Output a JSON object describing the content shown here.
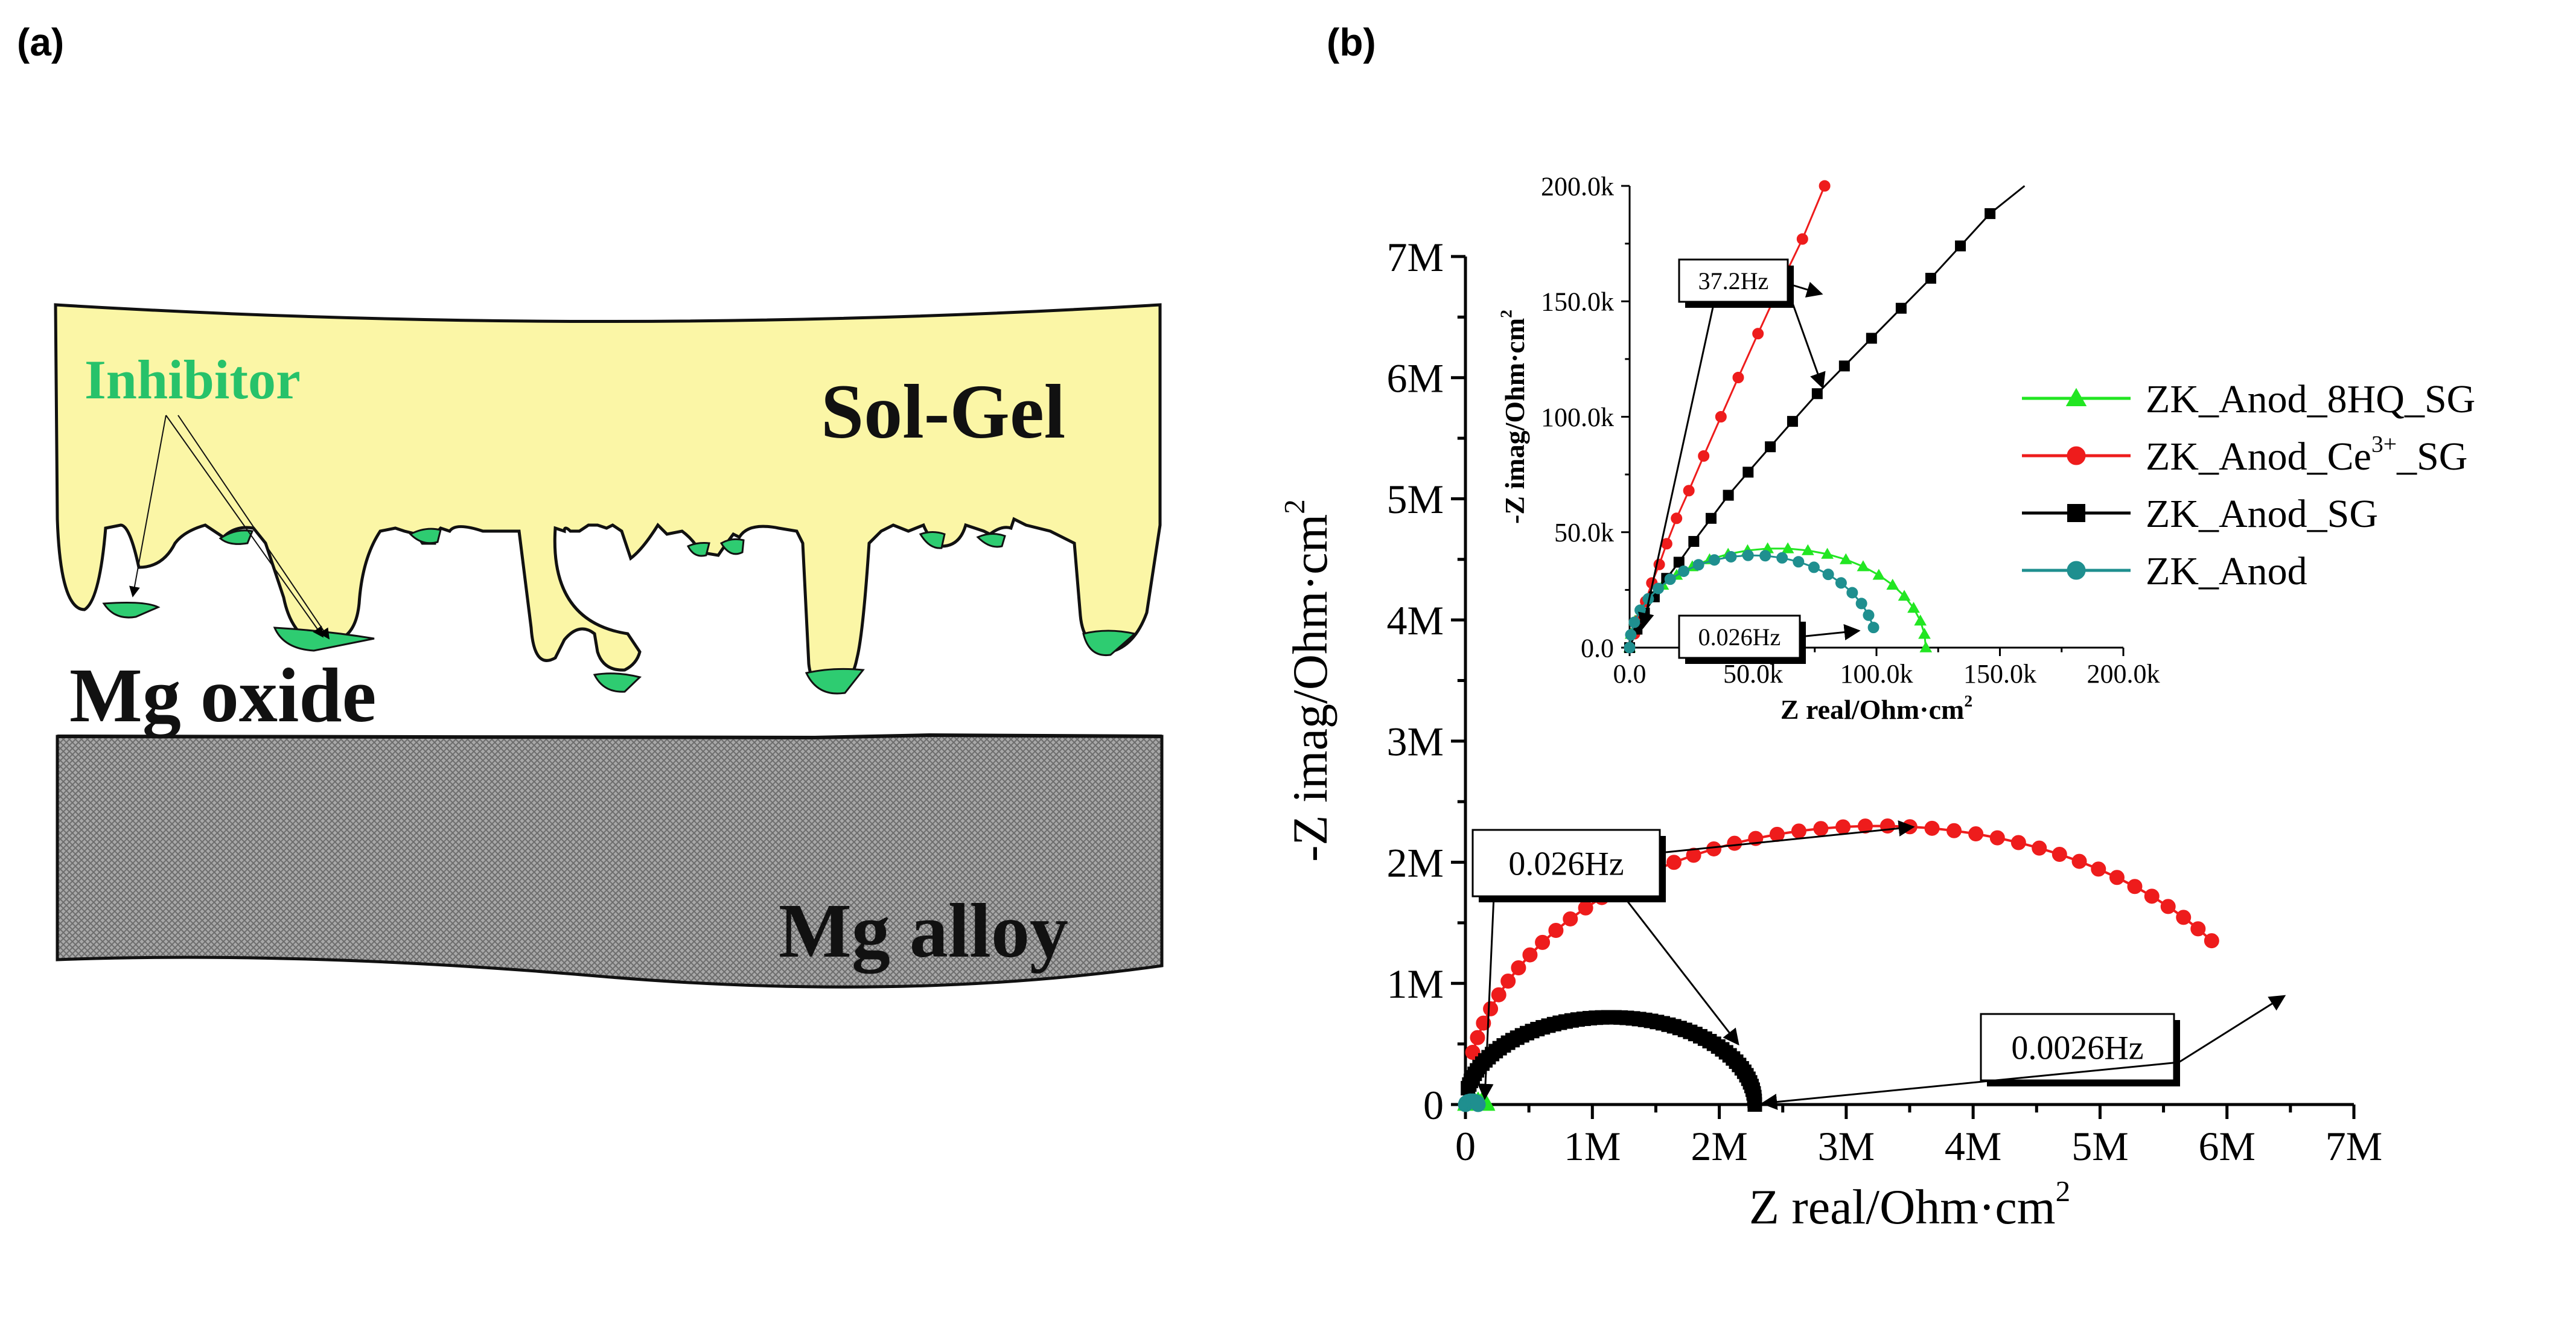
{
  "panel_a": {
    "label": "(a)",
    "layers": {
      "solgel": "Sol-Gel",
      "inhibitor": "Inhibitor",
      "oxide": "Mg oxide",
      "alloy": "Mg alloy"
    },
    "colors": {
      "solgel": "#fbf6a6",
      "inhibitor": "#27c26a",
      "inhibitor_fill": "#2ecc71",
      "oxide": "#ffffff",
      "alloy": "#9e9e9e"
    }
  },
  "panel_b": {
    "label": "(b)",
    "colors": {
      "green": "#22e622",
      "red": "#ee1c1c",
      "black": "#000000",
      "teal": "#1f8f8f"
    }
  },
  "chart_data": [
    {
      "type": "scatter",
      "name": "main",
      "xlabel_main": "Z real/Ohm",
      "xlabel_unit": "cm",
      "xlabel_exp": "2",
      "ylabel_main": "-Z imag/Ohm",
      "ylabel_unit": "cm",
      "ylabel_exp": "2",
      "xlim": [
        0,
        7000000
      ],
      "ylim": [
        0,
        7000000
      ],
      "xticks": [
        0,
        1000000,
        2000000,
        3000000,
        4000000,
        5000000,
        6000000,
        7000000
      ],
      "xtick_labels": [
        "0",
        "1M",
        "2M",
        "3M",
        "4M",
        "5M",
        "6M",
        "7M"
      ],
      "yticks": [
        0,
        1000000,
        2000000,
        3000000,
        4000000,
        5000000,
        6000000,
        7000000
      ],
      "ytick_labels": [
        "0",
        "1M",
        "2M",
        "3M",
        "4M",
        "5M",
        "6M",
        "7M"
      ],
      "series": [
        {
          "name": "ZK_Anod_8HQ_SG",
          "color_key": "green",
          "marker": "triangle",
          "arc": {
            "x0": 0,
            "x1": 170000,
            "hmax": 40000,
            "n": 10
          }
        },
        {
          "name": "ZK_Anod_Ce3+_SG",
          "color_key": "red",
          "marker": "circle",
          "arc": {
            "x0": 0,
            "x1": 6500000,
            "hmax": 2300000,
            "n": 44,
            "start": 0.06,
            "end": 0.8
          }
        },
        {
          "name": "ZK_Anod_SG",
          "color_key": "black",
          "marker": "square",
          "arc": {
            "x0": 0,
            "x1": 2280000,
            "hmax": 720000,
            "n": 70,
            "start": 0.06,
            "end": 1.0
          }
        },
        {
          "name": "ZK_Anod",
          "color_key": "teal",
          "marker": "circle",
          "arc": {
            "x0": 0,
            "x1": 100000,
            "hmax": 30000,
            "n": 8
          }
        }
      ],
      "annotations": [
        {
          "text": "0.026Hz"
        },
        {
          "text": "0.0026Hz"
        }
      ]
    },
    {
      "type": "scatter",
      "name": "inset",
      "xlabel_main": "Z real/Ohm",
      "xlabel_unit": "cm",
      "xlabel_exp": "2",
      "ylabel_main": "-Z imag/Ohm",
      "ylabel_unit": "cm",
      "ylabel_exp": "2",
      "xlim": [
        0,
        200000
      ],
      "ylim": [
        0,
        200000
      ],
      "xticks": [
        0,
        50000,
        100000,
        150000,
        200000
      ],
      "xtick_labels": [
        "0.0",
        "50.0k",
        "100.0k",
        "150.0k",
        "200.0k"
      ],
      "yticks": [
        0,
        50000,
        100000,
        150000,
        200000
      ],
      "ytick_labels": [
        "0.0",
        "50.0k",
        "100.0k",
        "150.0k",
        "200.0k"
      ],
      "series": [
        {
          "name": "ZK_Anod_8HQ_SG",
          "color_key": "green",
          "marker": "triangle",
          "arc": {
            "x0": 0,
            "x1": 120000,
            "hmax": 43000,
            "n": 24,
            "start": 0.0,
            "end": 1.0
          }
        },
        {
          "name": "ZK_Anod_Ce3+_SG",
          "color_key": "red",
          "marker": "circle",
          "points": [
            [
              0,
              0
            ],
            [
              2000,
              6000
            ],
            [
              4000,
              12000
            ],
            [
              6500,
              20000
            ],
            [
              9000,
              28000
            ],
            [
              12000,
              36000
            ],
            [
              15000,
              45000
            ],
            [
              19000,
              56000
            ],
            [
              24000,
              68000
            ],
            [
              30000,
              83000
            ],
            [
              37000,
              100000
            ],
            [
              44000,
              117000
            ],
            [
              52000,
              136000
            ],
            [
              61000,
              157000
            ],
            [
              70000,
              177000
            ],
            [
              79000,
              200000
            ]
          ]
        },
        {
          "name": "ZK_Anod_SG",
          "color_key": "black",
          "marker": "square",
          "points": [
            [
              0,
              0
            ],
            [
              3000,
              8000
            ],
            [
              6000,
              15000
            ],
            [
              10000,
              22000
            ],
            [
              15000,
              30000
            ],
            [
              20000,
              37000
            ],
            [
              26000,
              46000
            ],
            [
              33000,
              56000
            ],
            [
              40000,
              66000
            ],
            [
              48000,
              76000
            ],
            [
              57000,
              87000
            ],
            [
              66000,
              98000
            ],
            [
              76000,
              110000
            ],
            [
              87000,
              122000
            ],
            [
              98000,
              134000
            ],
            [
              110000,
              147000
            ],
            [
              122000,
              160000
            ],
            [
              134000,
              174000
            ],
            [
              146000,
              188000
            ],
            [
              160000,
              203000
            ]
          ]
        },
        {
          "name": "ZK_Anod",
          "color_key": "teal",
          "marker": "circle",
          "arc": {
            "x0": 0,
            "x1": 100000,
            "hmax": 40000,
            "n": 22,
            "start": 0.0,
            "end": 0.93
          }
        }
      ],
      "annotations": [
        {
          "text": "37.2Hz"
        },
        {
          "text": "0.026Hz"
        }
      ]
    }
  ],
  "legend": {
    "items": [
      {
        "name": "ZK_Anod_8HQ_SG",
        "color_key": "green",
        "marker": "triangle",
        "pre": "ZK_Anod_8HQ_SG",
        "sup": "",
        "post": ""
      },
      {
        "name": "ZK_Anod_Ce3+_SG",
        "color_key": "red",
        "marker": "circle",
        "pre": "ZK_Anod_Ce",
        "sup": "3+",
        "post": "_SG"
      },
      {
        "name": "ZK_Anod_SG",
        "color_key": "black",
        "marker": "square",
        "pre": "ZK_Anod_SG",
        "sup": "",
        "post": ""
      },
      {
        "name": "ZK_Anod",
        "color_key": "teal",
        "marker": "circle",
        "pre": "ZK_Anod",
        "sup": "",
        "post": ""
      }
    ]
  }
}
